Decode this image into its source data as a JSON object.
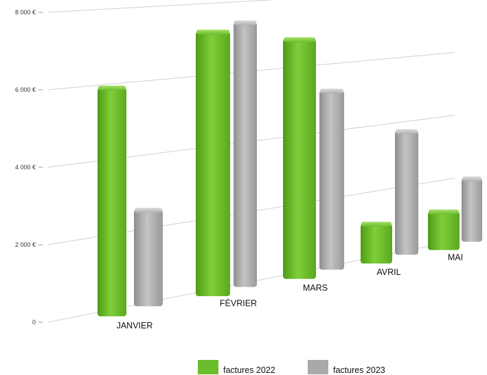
{
  "chart_data": {
    "type": "bar",
    "title": "",
    "xlabel": "",
    "ylabel": "",
    "categories": [
      "JANVIER",
      "FÉVRIER",
      "MARS",
      "AVRIL",
      "MAI"
    ],
    "series": [
      {
        "name": "factures 2022",
        "values": [
          5900,
          7200,
          6800,
          1000,
          1000
        ],
        "color": "#6cbd2c"
      },
      {
        "name": "factures 2023",
        "values": [
          2500,
          7400,
          5200,
          3700,
          1900
        ],
        "color": "#a9a9a9"
      }
    ],
    "y_ticks": [
      {
        "value": 0,
        "label": "0"
      },
      {
        "value": 2000,
        "label": "2 000 €"
      },
      {
        "value": 4000,
        "label": "4 000 €"
      },
      {
        "value": 6000,
        "label": "6 000 €"
      },
      {
        "value": 8000,
        "label": "8 000 €"
      }
    ],
    "ylim": [
      0,
      8000
    ],
    "grid": true,
    "perspective_3d": true,
    "legend_position": "bottom"
  }
}
